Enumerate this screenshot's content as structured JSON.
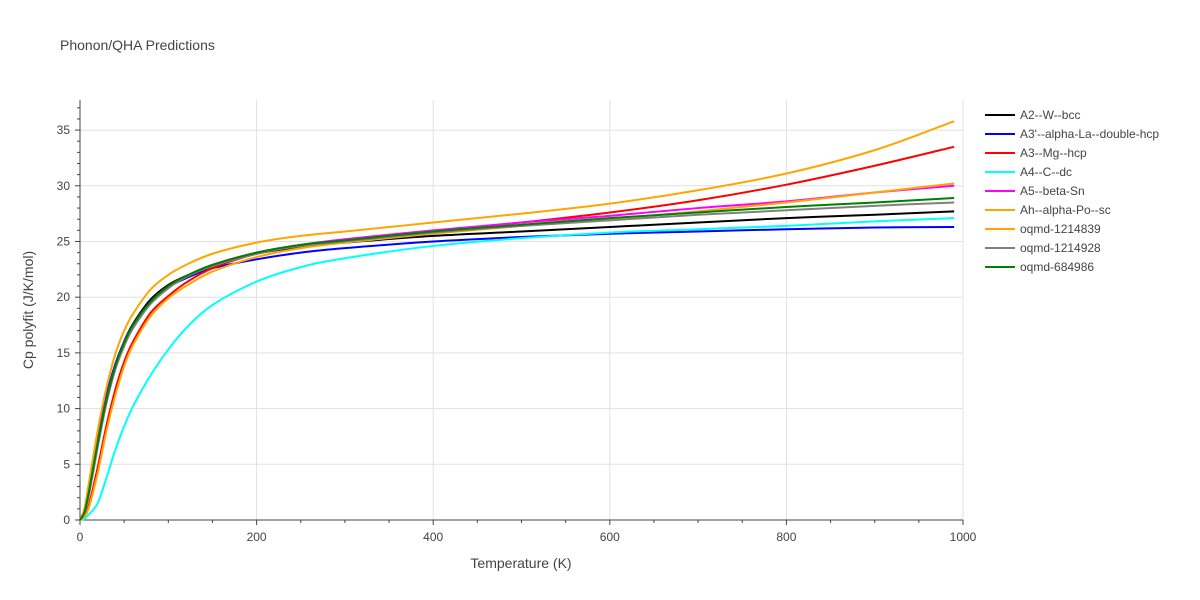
{
  "chart_data": {
    "type": "line",
    "title": "Phonon/QHA Predictions",
    "xlabel": "Temperature (K)",
    "ylabel": "Cp polyfit (J/K/mol)",
    "xlim": [
      0,
      1000
    ],
    "ylim": [
      0,
      37.7
    ],
    "xticks": [
      0,
      200,
      400,
      600,
      800,
      1000
    ],
    "yticks": [
      0,
      5,
      10,
      15,
      20,
      25,
      30,
      35
    ],
    "grid": true,
    "legend_position": "top-right",
    "x": [
      0,
      5,
      10,
      20,
      30,
      40,
      50,
      60,
      80,
      100,
      120,
      150,
      200,
      250,
      300,
      400,
      500,
      600,
      700,
      800,
      900,
      990
    ],
    "series": [
      {
        "name": "A2--W--bcc",
        "color": "#000000",
        "values": [
          0,
          0.6,
          2.4,
          6.8,
          10.8,
          13.8,
          16.0,
          17.6,
          19.8,
          21.1,
          21.9,
          22.8,
          23.9,
          24.5,
          24.9,
          25.5,
          25.9,
          26.3,
          26.7,
          27.1,
          27.4,
          27.7
        ]
      },
      {
        "name": "A3'--alpha-La--double-hcp",
        "color": "#0000ff",
        "values": [
          0,
          0.9,
          2.9,
          7.4,
          11.2,
          14.0,
          16.0,
          17.5,
          19.6,
          20.9,
          21.7,
          22.6,
          23.4,
          24.0,
          24.4,
          25.0,
          25.4,
          25.7,
          25.9,
          26.1,
          26.25,
          26.3
        ]
      },
      {
        "name": "A3--Mg--hcp",
        "color": "#ff0000",
        "values": [
          0,
          0.3,
          1.3,
          4.7,
          8.5,
          11.7,
          14.2,
          16.0,
          18.6,
          20.1,
          21.3,
          22.6,
          23.9,
          24.6,
          25.1,
          25.9,
          26.7,
          27.6,
          28.7,
          30.1,
          31.8,
          33.5
        ]
      },
      {
        "name": "A4--C--dc",
        "color": "#00ffff",
        "values": [
          0,
          0.1,
          0.5,
          1.5,
          3.8,
          6.3,
          8.4,
          10.2,
          13.0,
          15.3,
          17.2,
          19.3,
          21.4,
          22.7,
          23.5,
          24.6,
          25.3,
          25.8,
          26.1,
          26.4,
          26.8,
          27.1
        ]
      },
      {
        "name": "A5--beta-Sn",
        "color": "#ff00ff",
        "values": [
          0,
          0.8,
          2.6,
          7.0,
          10.9,
          13.8,
          15.9,
          17.4,
          19.5,
          20.9,
          21.8,
          22.9,
          24.0,
          24.7,
          25.2,
          26.0,
          26.7,
          27.3,
          28.0,
          28.6,
          29.4,
          30.0
        ]
      },
      {
        "name": "Ah--alpha-Po--sc",
        "color": "#ffa500",
        "values": [
          0,
          0.3,
          1.1,
          4.2,
          8.0,
          11.2,
          13.8,
          15.7,
          18.3,
          19.9,
          21.0,
          22.3,
          23.6,
          24.4,
          24.9,
          25.7,
          26.4,
          27.0,
          27.7,
          28.5,
          29.4,
          30.2
        ]
      },
      {
        "name": "oqmd-1214839",
        "color": "#ffa500",
        "values": [
          0,
          1.0,
          3.3,
          8.0,
          11.9,
          14.9,
          17.0,
          18.5,
          20.7,
          22.0,
          22.9,
          23.9,
          24.9,
          25.5,
          25.9,
          26.7,
          27.5,
          28.4,
          29.6,
          31.1,
          33.2,
          35.8
        ]
      },
      {
        "name": "oqmd-1214928",
        "color": "#808080",
        "values": [
          0,
          0.6,
          2.2,
          6.5,
          10.5,
          13.5,
          15.6,
          17.2,
          19.4,
          20.8,
          21.8,
          22.8,
          23.9,
          24.6,
          25.0,
          25.8,
          26.4,
          26.9,
          27.4,
          27.8,
          28.2,
          28.5
        ]
      },
      {
        "name": "oqmd-684986",
        "color": "#008000",
        "values": [
          0,
          0.7,
          2.5,
          6.9,
          10.8,
          13.8,
          15.9,
          17.5,
          19.6,
          21.0,
          21.9,
          22.9,
          24.0,
          24.7,
          25.1,
          25.9,
          26.5,
          27.1,
          27.6,
          28.1,
          28.5,
          28.9
        ]
      }
    ]
  }
}
